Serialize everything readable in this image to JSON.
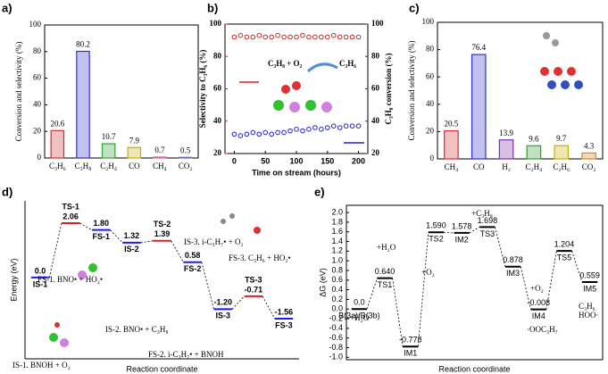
{
  "chart_data": [
    {
      "type": "bar",
      "label": "a)",
      "ylabel": "Conversion and selectivity (%)",
      "categories": [
        "C₃H₆",
        "C₃H₈",
        "C₂H₄",
        "CO",
        "CH₄",
        "CO₂"
      ],
      "values": [
        20.6,
        80.2,
        10.7,
        7.9,
        0.7,
        0.5
      ],
      "colors": [
        "#d03030",
        "#3030d0",
        "#30a030",
        "#c8b000",
        "#e060a0",
        "#8060c0"
      ],
      "ylim": [
        0,
        100
      ],
      "yticks": [
        0,
        20,
        40,
        60,
        80,
        100
      ]
    },
    {
      "type": "scatter",
      "label": "b)",
      "xlabel": "Time on stream (hours)",
      "ylabel": "Selectivity to C₃H₆ (%)",
      "y2label": "C₃H₈ conversion (%)",
      "x": [
        0,
        10,
        20,
        30,
        40,
        50,
        60,
        70,
        80,
        90,
        100,
        110,
        120,
        130,
        140,
        150,
        160,
        170,
        180,
        190,
        200
      ],
      "series": [
        {
          "color": "#e02020",
          "axis": "y",
          "values": [
            92,
            93,
            92,
            92,
            93,
            92,
            92,
            93,
            92,
            92,
            92,
            93,
            92,
            92,
            92,
            92,
            93,
            92,
            92,
            92,
            92
          ]
        },
        {
          "color": "#2020d0",
          "axis": "y2",
          "values": [
            32,
            31,
            32,
            33,
            32,
            33,
            32,
            33,
            33,
            34,
            35,
            34,
            35,
            36,
            35,
            36,
            37,
            36,
            37,
            37,
            37
          ]
        }
      ],
      "xlim": [
        -15,
        215
      ],
      "xticks": [
        0,
        50,
        100,
        150,
        200
      ],
      "ylim": [
        20,
        100
      ],
      "yticks": [
        20,
        40,
        60,
        80,
        100
      ],
      "y2lim": [
        20,
        100
      ],
      "y2ticks": [
        20,
        40,
        60,
        80,
        100
      ],
      "annotations": [
        "C₃H₈ + O₂",
        "C₃H₆"
      ]
    },
    {
      "type": "bar",
      "label": "c)",
      "ylabel": "Conversion and selectivity (%)",
      "categories": [
        "CH₄",
        "CO",
        "H₂",
        "C₂H₄",
        "C₂H₆",
        "CO₂"
      ],
      "values": [
        20.5,
        76.4,
        13.9,
        9.6,
        9.7,
        4.3
      ],
      "colors": [
        "#d03030",
        "#3030d0",
        "#8030a0",
        "#30a030",
        "#c8b000",
        "#e08020"
      ],
      "ylim": [
        0,
        100
      ],
      "yticks": [
        0,
        20,
        40,
        60,
        80,
        100
      ]
    },
    {
      "type": "energy",
      "label": "d)",
      "ylabel": "Energy (eV)",
      "xlabel": "Reaction coordinate",
      "categories": [
        "IS-1",
        "TS-1",
        "FS-1",
        "IS-2",
        "TS-2",
        "FS-2",
        "IS-3",
        "TS-3",
        "FS-3"
      ],
      "values": [
        0,
        2.06,
        1.8,
        1.32,
        1.39,
        0.58,
        -1.2,
        -0.71,
        -1.56
      ],
      "value_labels": [
        "0.0",
        "2.06",
        "1.80",
        "1.32",
        "1.39",
        "0.58",
        "-1.20",
        "-0.71",
        "-1.56"
      ],
      "level_color": "#1a1aff",
      "ts_color": "#e02020",
      "label_color": "#000000",
      "annotations": [
        {
          "text": "IS-1. BNOH + O₂",
          "color": "#000000"
        },
        {
          "text": "FS-1. BNO• + HO₂•",
          "color": "#000000"
        },
        {
          "text": "IS-2. BNO• + C₃H₈",
          "color": "#000000"
        },
        {
          "text": "FS-2. i-C₃H₇• + BNOH",
          "color": "#000000"
        },
        {
          "text": "IS-3. i-C₃H₇• + O₂",
          "color": "#000000"
        },
        {
          "text": "FS-3. C₃H₆ + HO₂•",
          "color": "#000000"
        }
      ]
    },
    {
      "type": "energy",
      "label": "e)",
      "ylabel": "ΔG (eV)",
      "xlabel": "Reaction coordinate",
      "categories": [
        "B(3a)/B(3b)",
        "TS1",
        "IM1",
        "TS2",
        "IM2",
        "TS3",
        "IM3",
        "IM4",
        "TS5",
        "IM5"
      ],
      "values": [
        0,
        0.64,
        -0.778,
        1.59,
        1.578,
        1.698,
        0.878,
        -0.008,
        1.204,
        0.559
      ],
      "value_labels": [
        "0.0",
        "0.640",
        "-0.778",
        "1.590",
        "1.578",
        "1.698",
        "0.878",
        "-0.008",
        "1.204",
        "0.559"
      ],
      "level_color": "#000000",
      "ts_color": "#000000",
      "label_color": "#1a1aff",
      "ylim": [
        -1.05,
        2.15
      ],
      "yticks": [
        {
          "value": -1,
          "label": "-1.0"
        },
        -0.8,
        -0.6,
        -0.4,
        -0.2,
        {
          "value": 0,
          "label": "0.0"
        },
        0.2,
        0.4,
        0.6,
        0.8,
        {
          "value": 1,
          "label": "1.0"
        },
        1.2,
        1.4,
        1.6,
        1.8,
        {
          "value": 2,
          "label": "2.0"
        }
      ],
      "annotations": [
        {
          "text": "+H₂O",
          "color": "#000000"
        },
        {
          "text": "+H₂O",
          "color": "#1a1aff"
        },
        {
          "text": "+O₂",
          "color": "#1a1aff"
        },
        {
          "text": "+C₃H₈",
          "color": "#1a1aff"
        },
        {
          "text": "+O₂",
          "color": "#1a1aff"
        },
        {
          "text": "·OOC₃H₇",
          "color": "#e02020"
        },
        {
          "text": "C₃H₆",
          "color": "#e02020"
        },
        {
          "text": "HOO·",
          "color": "#e02020"
        }
      ]
    }
  ]
}
